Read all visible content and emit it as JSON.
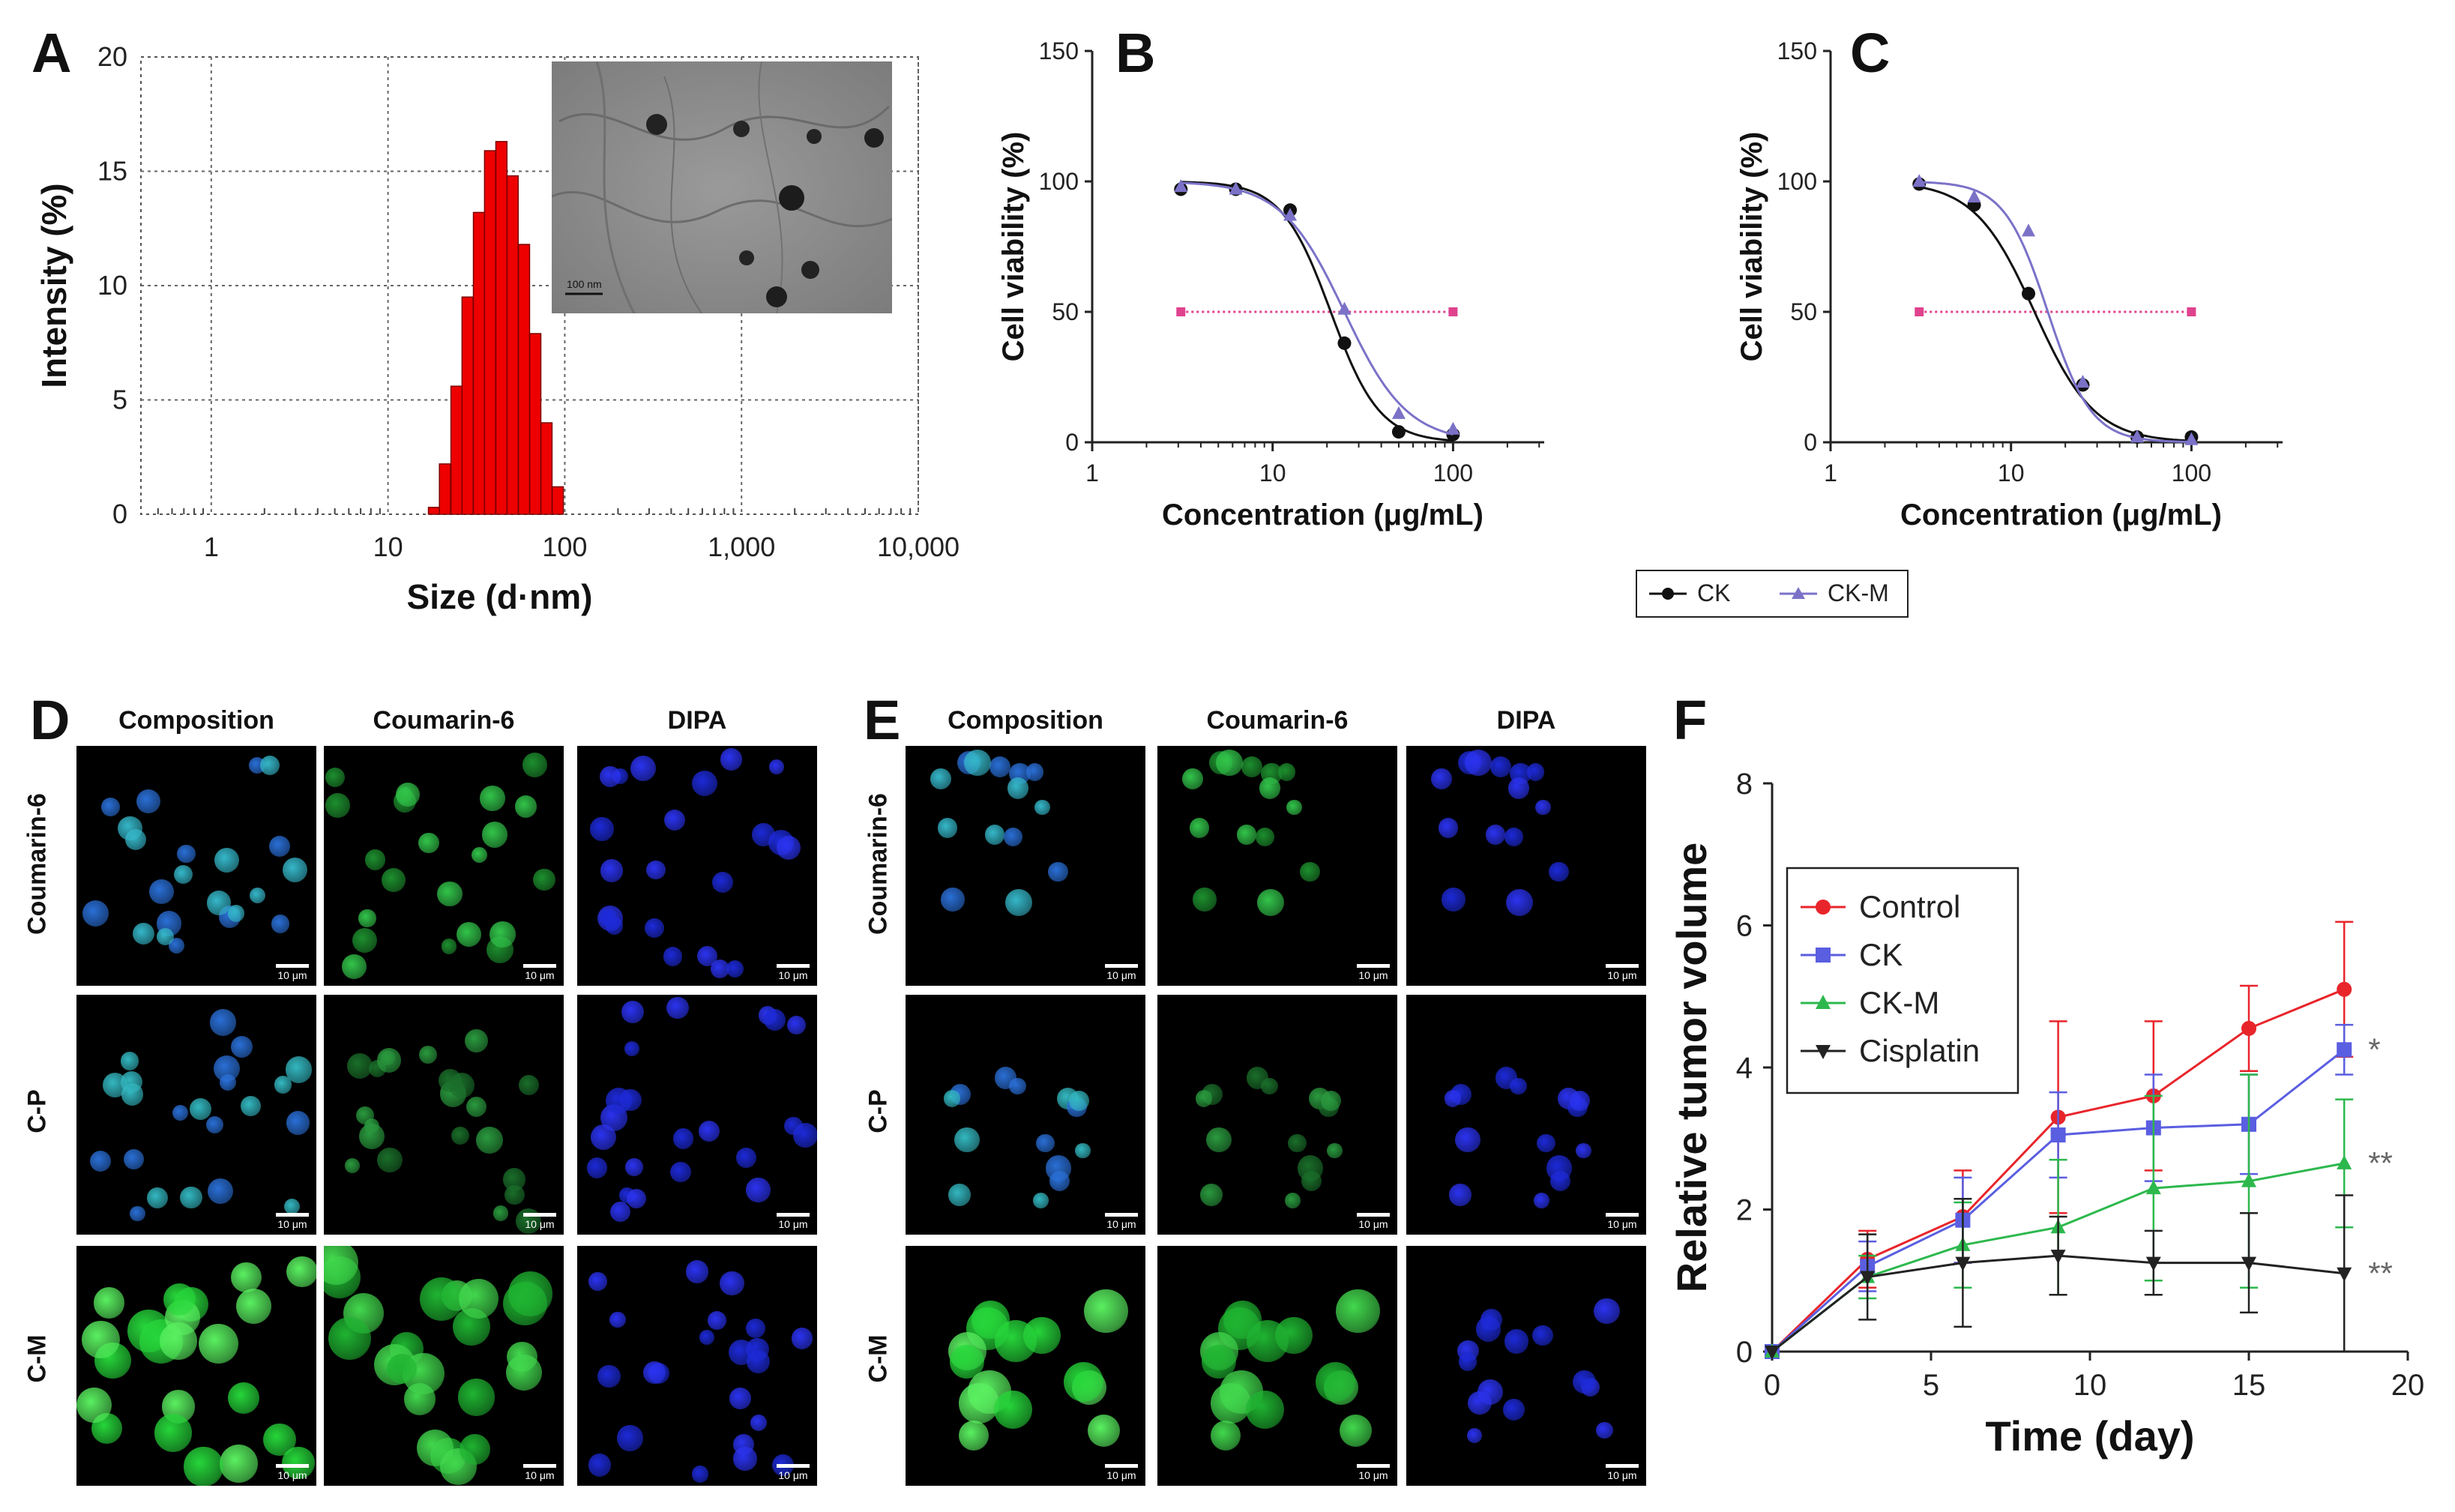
{
  "panels": {
    "A": {
      "letter": "A"
    },
    "B": {
      "letter": "B"
    },
    "C": {
      "letter": "C"
    },
    "D": {
      "letter": "D"
    },
    "E": {
      "letter": "E"
    },
    "F": {
      "letter": "F"
    }
  },
  "tem_inset": {
    "scale_label": "100 nm"
  },
  "viability_legend": {
    "items": [
      {
        "label": "CK",
        "color": "#111111",
        "marker": "circle"
      },
      {
        "label": "CK-M",
        "color": "#7b72c8",
        "marker": "triangle"
      }
    ]
  },
  "microscopy": {
    "columns": [
      "Composition",
      "Coumarin-6",
      "DIPA"
    ],
    "rows": [
      "Coumarin-6",
      "C-P",
      "C-M"
    ],
    "scale_label": "10 μm"
  },
  "chart_data": [
    {
      "id": "A",
      "type": "bar",
      "xlabel": "Size (d·nm)",
      "ylabel": "Intensity (%)",
      "xscale": "log",
      "xlim": [
        0.4,
        10000
      ],
      "ylim": [
        0,
        20
      ],
      "yticks": [
        0,
        5,
        10,
        15,
        20
      ],
      "xticks": [
        1,
        10,
        100,
        1000,
        10000
      ],
      "xtick_labels": [
        "1",
        "10",
        "100",
        "1,000",
        "10,000"
      ],
      "bar_color": "#ee0000",
      "bins": [
        {
          "x": 18.2,
          "value": 0.3
        },
        {
          "x": 21.0,
          "value": 2.2
        },
        {
          "x": 24.4,
          "value": 5.6
        },
        {
          "x": 28.2,
          "value": 9.5
        },
        {
          "x": 32.7,
          "value": 13.2
        },
        {
          "x": 37.8,
          "value": 15.9
        },
        {
          "x": 43.8,
          "value": 16.3
        },
        {
          "x": 50.7,
          "value": 14.8
        },
        {
          "x": 58.8,
          "value": 11.8
        },
        {
          "x": 68.1,
          "value": 7.9
        },
        {
          "x": 78.8,
          "value": 4.0
        },
        {
          "x": 91.3,
          "value": 1.2
        }
      ]
    },
    {
      "id": "B",
      "type": "line",
      "xlabel": "Concentration (μg/mL)",
      "ylabel": "Cell viability (%)",
      "xscale": "log",
      "xlim": [
        1,
        320
      ],
      "ylim": [
        0,
        150
      ],
      "yticks": [
        0,
        50,
        100,
        150
      ],
      "xticks": [
        1,
        10,
        100
      ],
      "xtick_labels": [
        "1",
        "10",
        "100"
      ],
      "reference_line": {
        "y": 50,
        "x_range": [
          3.1,
          100
        ],
        "color": "#e0428e"
      },
      "series": [
        {
          "name": "CK",
          "color": "#111111",
          "marker": "circle",
          "x": [
            3.1,
            6.25,
            12.5,
            25,
            50,
            100
          ],
          "y": [
            97,
            97,
            89,
            38,
            4,
            3
          ],
          "ic50": 21,
          "hill": 3.2
        },
        {
          "name": "CK-M",
          "color": "#7b72c8",
          "marker": "triangle",
          "x": [
            3.1,
            6.25,
            12.5,
            25,
            50,
            100
          ],
          "y": [
            98,
            97,
            87,
            51,
            11,
            5
          ],
          "ic50": 25,
          "hill": 2.5
        }
      ]
    },
    {
      "id": "C",
      "type": "line",
      "xlabel": "Concentration (μg/mL)",
      "ylabel": "Cell viability (%)",
      "xscale": "log",
      "xlim": [
        1,
        320
      ],
      "ylim": [
        0,
        150
      ],
      "yticks": [
        0,
        50,
        100,
        150
      ],
      "xticks": [
        1,
        10,
        100
      ],
      "xtick_labels": [
        "1",
        "10",
        "100"
      ],
      "reference_line": {
        "y": 50,
        "x_range": [
          3.1,
          100
        ],
        "color": "#e0428e"
      },
      "series": [
        {
          "name": "CK",
          "color": "#111111",
          "marker": "circle",
          "x": [
            3.1,
            6.25,
            12.5,
            25,
            50,
            100
          ],
          "y": [
            99,
            91,
            57,
            22,
            2,
            2
          ],
          "ic50": 13.5,
          "hill": 2.6
        },
        {
          "name": "CK-M",
          "color": "#7b72c8",
          "marker": "triangle",
          "x": [
            3.1,
            6.25,
            12.5,
            25,
            50,
            100
          ],
          "y": [
            100,
            94,
            81,
            23,
            2,
            1
          ],
          "ic50": 16,
          "hill": 3.6
        }
      ]
    },
    {
      "id": "F",
      "type": "line",
      "xlabel": "Time (day)",
      "ylabel": "Relative tumor volume",
      "xlim": [
        0,
        20
      ],
      "ylim": [
        0,
        8
      ],
      "xticks": [
        0,
        5,
        10,
        15,
        20
      ],
      "yticks": [
        0,
        2,
        4,
        6,
        8
      ],
      "legend_position": "top-left",
      "series": [
        {
          "name": "Control",
          "color": "#e8252b",
          "marker": "circle",
          "x": [
            0,
            3,
            6,
            9,
            12,
            15,
            18
          ],
          "y": [
            0,
            1.3,
            1.9,
            3.3,
            3.6,
            4.55,
            5.1
          ],
          "err": [
            0,
            0.4,
            0.65,
            1.35,
            1.05,
            0.6,
            0.95
          ],
          "significance": ""
        },
        {
          "name": "CK",
          "color": "#5a5ee0",
          "marker": "square",
          "x": [
            0,
            3,
            6,
            9,
            12,
            15,
            18
          ],
          "y": [
            0,
            1.2,
            1.85,
            3.05,
            3.15,
            3.2,
            4.25
          ],
          "err": [
            0,
            0.35,
            0.6,
            0.6,
            0.75,
            0.7,
            0.35
          ],
          "significance": "*"
        },
        {
          "name": "CK-M",
          "color": "#2db84d",
          "marker": "triangle-up",
          "x": [
            0,
            3,
            6,
            9,
            12,
            15,
            18
          ],
          "y": [
            0,
            1.05,
            1.5,
            1.75,
            2.3,
            2.4,
            2.65
          ],
          "err": [
            0,
            0.3,
            0.6,
            0.95,
            1.3,
            1.5,
            0.9
          ],
          "significance": "**"
        },
        {
          "name": "Cisplatin",
          "color": "#222222",
          "marker": "triangle-down",
          "x": [
            0,
            3,
            6,
            9,
            12,
            15,
            18
          ],
          "y": [
            0,
            1.05,
            1.25,
            1.35,
            1.25,
            1.25,
            1.1
          ],
          "err": [
            0,
            0.6,
            0.9,
            0.55,
            0.45,
            0.7,
            1.1
          ],
          "significance": "**"
        }
      ]
    }
  ]
}
